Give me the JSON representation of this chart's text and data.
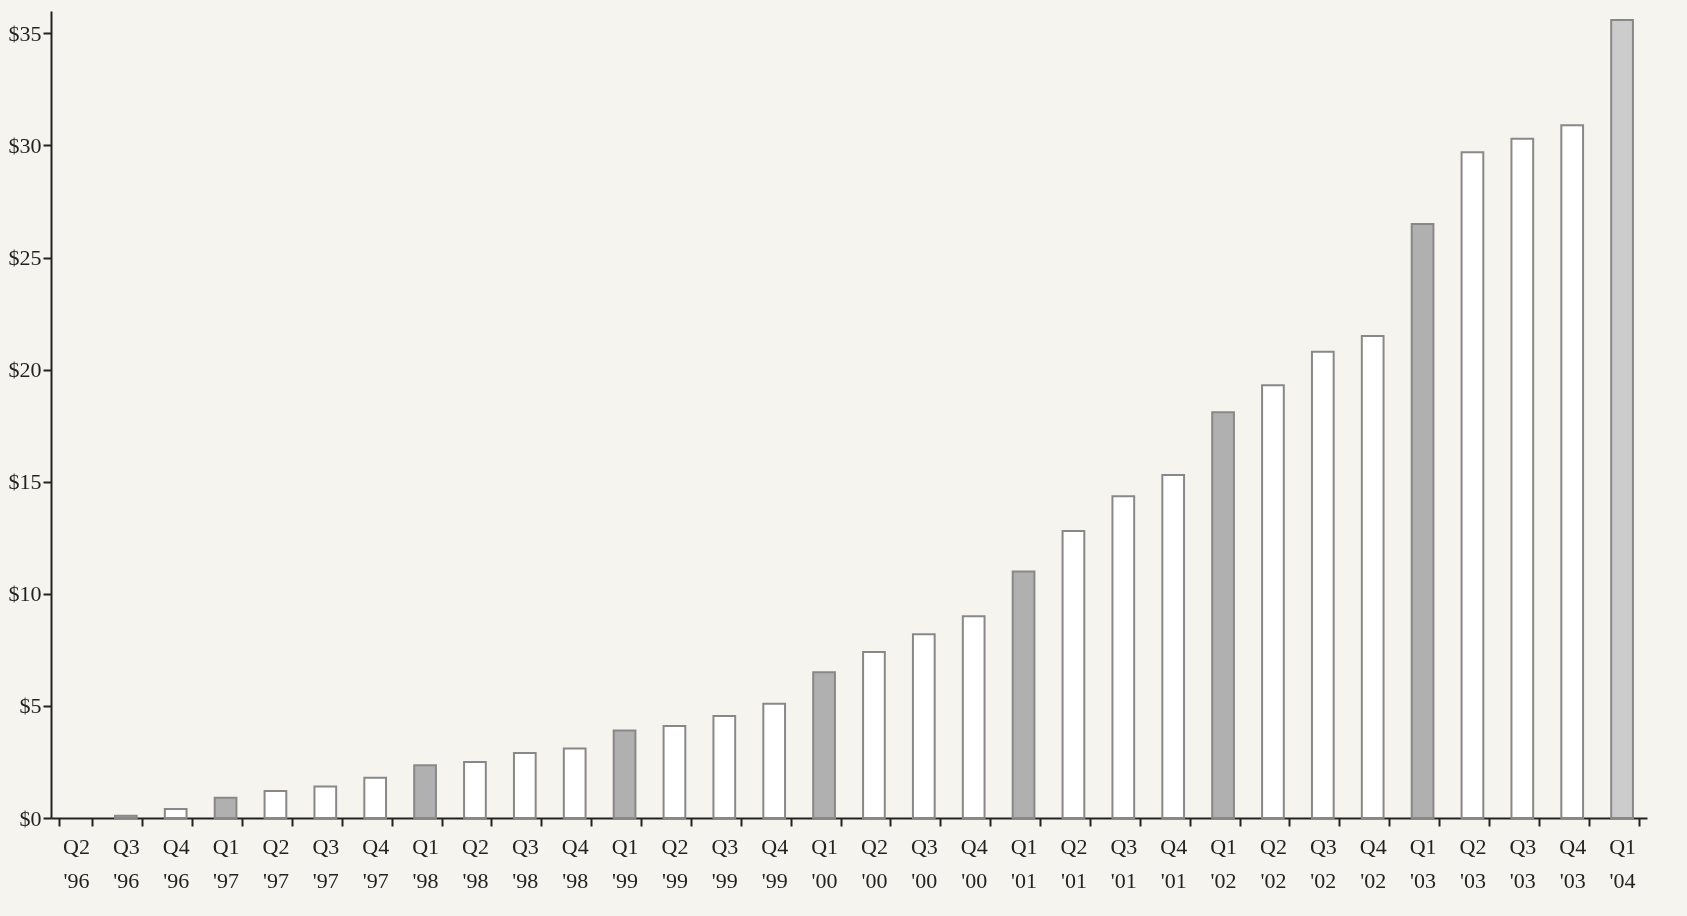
{
  "chart_data": {
    "type": "bar",
    "categories": [
      "Q2 '96",
      "Q3 '96",
      "Q4 '96",
      "Q1 '97",
      "Q2 '97",
      "Q3 '97",
      "Q4 '97",
      "Q1 '98",
      "Q2 '98",
      "Q3 '98",
      "Q4 '98",
      "Q1 '99",
      "Q2 '99",
      "Q3 '99",
      "Q4 '99",
      "Q1 '00",
      "Q2 '00",
      "Q3 '00",
      "Q4 '00",
      "Q1 '01",
      "Q2 '01",
      "Q3 '01",
      "Q4 '01",
      "Q1 '02",
      "Q2 '02",
      "Q3 '02",
      "Q4 '02",
      "Q1 '03",
      "Q2 '03",
      "Q3 '03",
      "Q4 '03",
      "Q1 '04"
    ],
    "values": [
      null,
      0.1,
      0.4,
      0.9,
      1.2,
      1.4,
      1.8,
      2.35,
      2.5,
      2.9,
      3.1,
      3.9,
      4.1,
      4.55,
      5.1,
      6.5,
      7.4,
      8.2,
      9.0,
      11.0,
      12.8,
      14.35,
      15.3,
      18.1,
      19.3,
      20.8,
      21.5,
      26.5,
      29.7,
      30.3,
      30.9,
      35.6
    ],
    "colors": [
      "#b0b0b0",
      "#b0b0b0",
      "#ffffff",
      "#b0b0b0",
      "#ffffff",
      "#ffffff",
      "#ffffff",
      "#b0b0b0",
      "#ffffff",
      "#ffffff",
      "#ffffff",
      "#b0b0b0",
      "#ffffff",
      "#ffffff",
      "#ffffff",
      "#b0b0b0",
      "#ffffff",
      "#ffffff",
      "#ffffff",
      "#b0b0b0",
      "#ffffff",
      "#ffffff",
      "#ffffff",
      "#b0b0b0",
      "#ffffff",
      "#ffffff",
      "#ffffff",
      "#b0b0b0",
      "#ffffff",
      "#ffffff",
      "#ffffff",
      "#cccccc"
    ],
    "ylim": [
      0,
      36
    ],
    "yticks": [
      {
        "value": 0,
        "label": "$0"
      },
      {
        "value": 5,
        "label": "$5"
      },
      {
        "value": 10,
        "label": "$10"
      },
      {
        "value": 15,
        "label": "$15"
      },
      {
        "value": 20,
        "label": "$20"
      },
      {
        "value": 25,
        "label": "$25"
      },
      {
        "value": 30,
        "label": "$30"
      },
      {
        "value": 35,
        "label": "$35"
      }
    ],
    "grid": false,
    "legend": false
  }
}
